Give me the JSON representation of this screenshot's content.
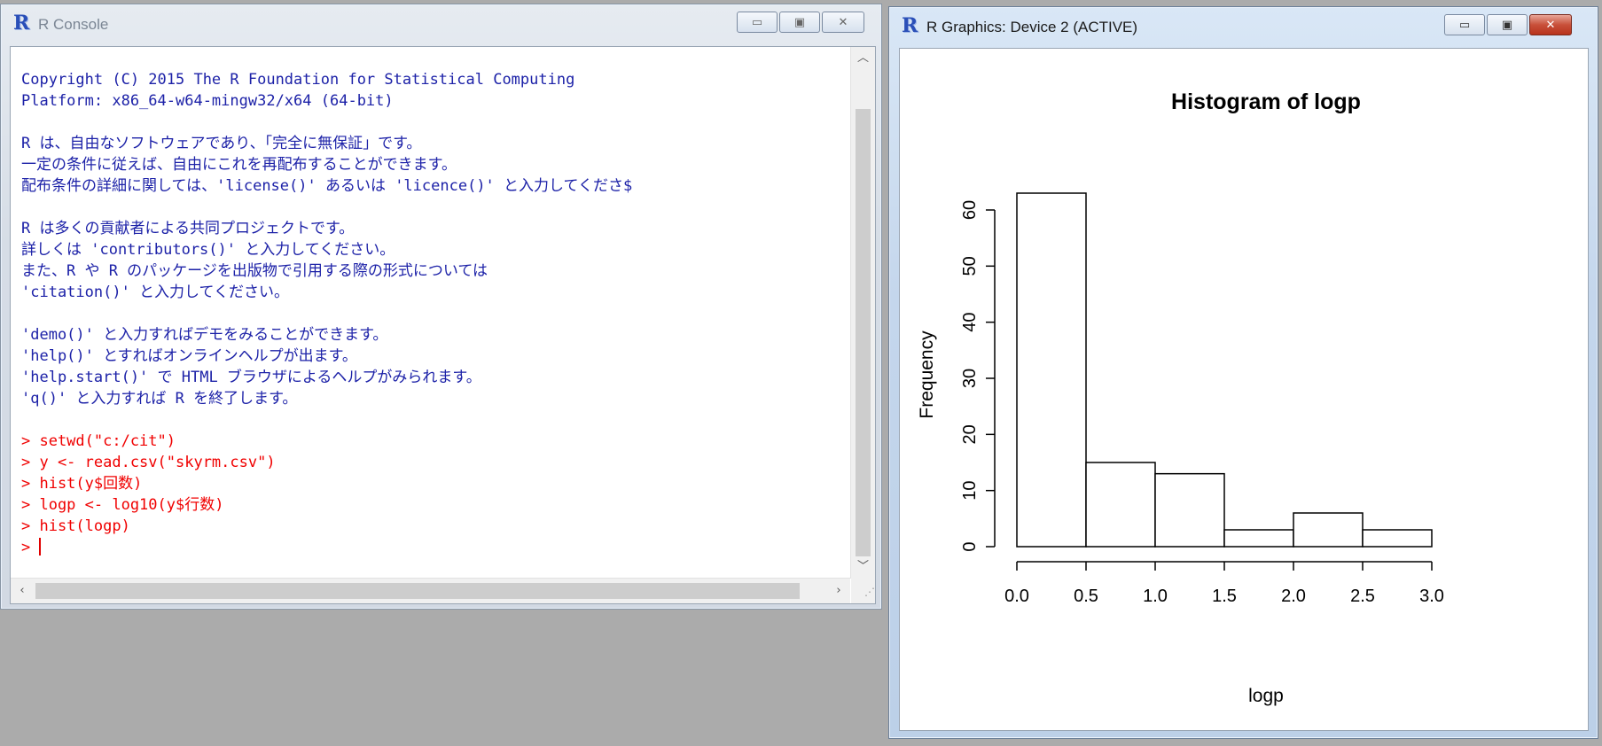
{
  "console_window": {
    "title": "R Console",
    "lines": [
      {
        "text": "Copyright (C) 2015 The R Foundation for Statistical Computing",
        "kind": "output"
      },
      {
        "text": "Platform: x86_64-w64-mingw32/x64 (64-bit)",
        "kind": "output"
      },
      {
        "text": "",
        "kind": "blank"
      },
      {
        "text": "R は、自由なソフトウェアであり、「完全に無保証」です。",
        "kind": "output"
      },
      {
        "text": "一定の条件に従えば、自由にこれを再配布することができます。",
        "kind": "output"
      },
      {
        "text": "配布条件の詳細に関しては、'license()' あるいは 'licence()' と入力してくださ$",
        "kind": "output"
      },
      {
        "text": "",
        "kind": "blank"
      },
      {
        "text": "R は多くの貢献者による共同プロジェクトです。",
        "kind": "output"
      },
      {
        "text": "詳しくは 'contributors()' と入力してください。",
        "kind": "output"
      },
      {
        "text": "また、R や R のパッケージを出版物で引用する際の形式については",
        "kind": "output"
      },
      {
        "text": "'citation()' と入力してください。",
        "kind": "output"
      },
      {
        "text": "",
        "kind": "blank"
      },
      {
        "text": "'demo()' と入力すればデモをみることができます。",
        "kind": "output"
      },
      {
        "text": "'help()' とすればオンラインヘルプが出ます。",
        "kind": "output"
      },
      {
        "text": "'help.start()' で HTML ブラウザによるヘルプがみられます。",
        "kind": "output"
      },
      {
        "text": "'q()' と入力すれば R を終了します。",
        "kind": "output"
      },
      {
        "text": "",
        "kind": "blank"
      },
      {
        "text": "> setwd(\"c:/cit\")",
        "kind": "command"
      },
      {
        "text": "> y <- read.csv(\"skyrm.csv\")",
        "kind": "command"
      },
      {
        "text": "> hist(y$回数)",
        "kind": "command"
      },
      {
        "text": "> logp <- log10(y$行数)",
        "kind": "command"
      },
      {
        "text": "> hist(logp)",
        "kind": "command"
      }
    ],
    "prompt": "> "
  },
  "graphics_window": {
    "title": "R Graphics: Device 2 (ACTIVE)"
  },
  "chart_data": {
    "type": "bar",
    "title": "Histogram of logp",
    "xlabel": "logp",
    "ylabel": "Frequency",
    "bin_edges": [
      0.0,
      0.5,
      1.0,
      1.5,
      2.0,
      2.5,
      3.0
    ],
    "values": [
      63,
      15,
      13,
      3,
      6,
      3
    ],
    "x_ticks": [
      "0.0",
      "0.5",
      "1.0",
      "1.5",
      "2.0",
      "2.5",
      "3.0"
    ],
    "y_ticks": [
      "0",
      "10",
      "20",
      "30",
      "40",
      "50",
      "60"
    ],
    "xlim": [
      0,
      3
    ],
    "ylim": [
      0,
      63
    ],
    "grid": false
  }
}
